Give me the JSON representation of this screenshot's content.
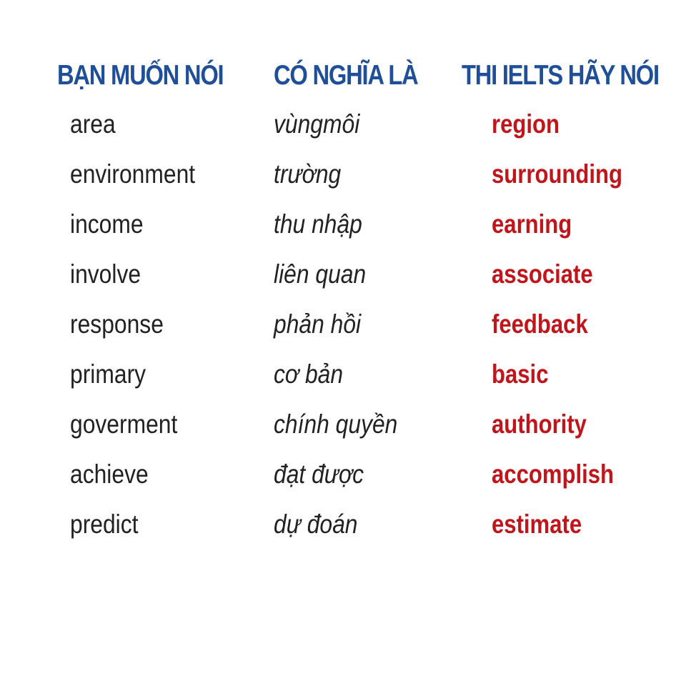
{
  "headers": {
    "you_want_to_say": "BẠN MUỐN NÓI",
    "meaning": "CÓ NGHĨA LÀ",
    "ielts_say": "THI IELTS HÃY NÓI"
  },
  "rows": [
    {
      "common": "area",
      "meaning": "vùngmôi",
      "ielts": "region"
    },
    {
      "common": "environment",
      "meaning": "trường",
      "ielts": "surrounding"
    },
    {
      "common": "income",
      "meaning": "thu nhập",
      "ielts": "earning"
    },
    {
      "common": "involve",
      "meaning": "liên quan",
      "ielts": "associate"
    },
    {
      "common": "response",
      "meaning": "phản hồi",
      "ielts": "feedback"
    },
    {
      "common": "primary",
      "meaning": "cơ bản",
      "ielts": "basic"
    },
    {
      "common": "goverment",
      "meaning": "chính quyền",
      "ielts": "authority"
    },
    {
      "common": "achieve",
      "meaning": "đạt được",
      "ielts": "accomplish"
    },
    {
      "common": "predict",
      "meaning": "dự đoán",
      "ielts": "estimate"
    }
  ],
  "colors": {
    "header": "#1f4f99",
    "text": "#222222",
    "ielts_word": "#c0161b",
    "background": "#ffffff"
  }
}
